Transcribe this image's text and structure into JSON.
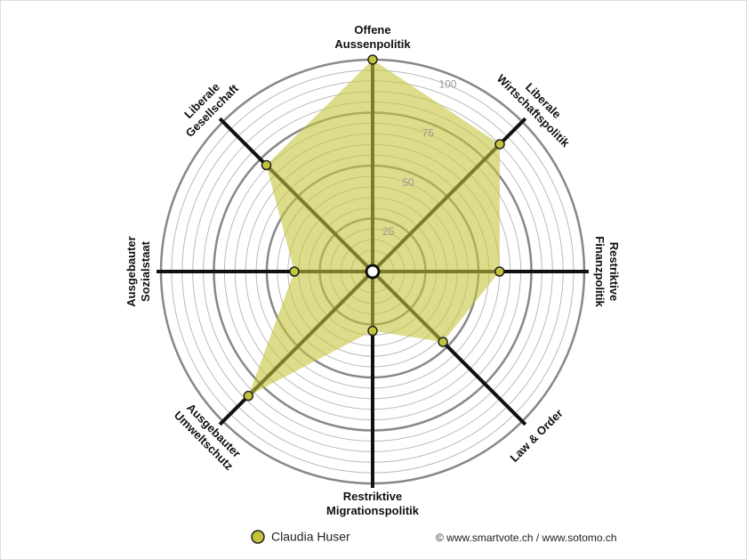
{
  "chart_data": {
    "type": "radar",
    "categories": [
      "Offene\nAussenpolitik",
      "Liberale\nWirtschaftspolitik",
      "Restriktive\nFinanzpolitik",
      "Law & Order",
      "Restriktive\nMigrationspolitik",
      "Ausgebauter\nUmweltschutz",
      "Ausgebauter\nSozialstaat",
      "Liberale\nGesellschaft"
    ],
    "series": [
      {
        "name": "Claudia Huser",
        "color": "#c4c43c",
        "values": [
          100,
          85,
          60,
          47,
          28,
          83,
          37,
          71
        ]
      }
    ],
    "ylim": [
      0,
      100
    ],
    "yticks": [
      25,
      50,
      75,
      100
    ],
    "source": "© www.smartvote.ch / www.sotomo.ch"
  }
}
